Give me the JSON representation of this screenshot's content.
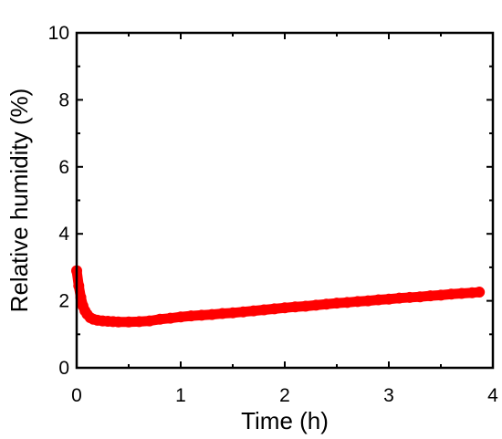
{
  "chart_data": {
    "type": "scatter",
    "xlabel": "Time (h)",
    "ylabel": "Relative humidity (%)",
    "xlim": [
      0,
      4
    ],
    "ylim": [
      0,
      10
    ],
    "xticks": [
      0,
      1,
      2,
      3,
      4
    ],
    "yticks": [
      0,
      2,
      4,
      6,
      8,
      10
    ],
    "xtick_labels": [
      "0",
      "1",
      "2",
      "3",
      "4"
    ],
    "ytick_labels": [
      "0",
      "2",
      "4",
      "6",
      "8",
      "10"
    ],
    "grid": false,
    "legend": "none",
    "series": [
      {
        "color": "#ff0000",
        "x": [
          0.0,
          0.02,
          0.04,
          0.06,
          0.08,
          0.1,
          0.13,
          0.16,
          0.2,
          0.25,
          0.3,
          0.35,
          0.4,
          0.5,
          0.6,
          0.7,
          0.8,
          0.9,
          1.0,
          1.1,
          1.2,
          1.3,
          1.4,
          1.5,
          1.6,
          1.7,
          1.8,
          1.9,
          2.0,
          2.1,
          2.2,
          2.3,
          2.4,
          2.5,
          2.6,
          2.7,
          2.8,
          2.9,
          3.0,
          3.1,
          3.2,
          3.3,
          3.4,
          3.5,
          3.6,
          3.7,
          3.8,
          3.87
        ],
        "y": [
          2.9,
          2.45,
          2.1,
          1.85,
          1.7,
          1.6,
          1.5,
          1.45,
          1.42,
          1.4,
          1.39,
          1.38,
          1.37,
          1.37,
          1.38,
          1.4,
          1.45,
          1.48,
          1.52,
          1.55,
          1.57,
          1.59,
          1.62,
          1.64,
          1.67,
          1.7,
          1.73,
          1.76,
          1.79,
          1.82,
          1.84,
          1.87,
          1.9,
          1.93,
          1.95,
          1.98,
          2.0,
          2.03,
          2.05,
          2.08,
          2.1,
          2.12,
          2.15,
          2.17,
          2.2,
          2.22,
          2.24,
          2.26
        ]
      }
    ]
  }
}
